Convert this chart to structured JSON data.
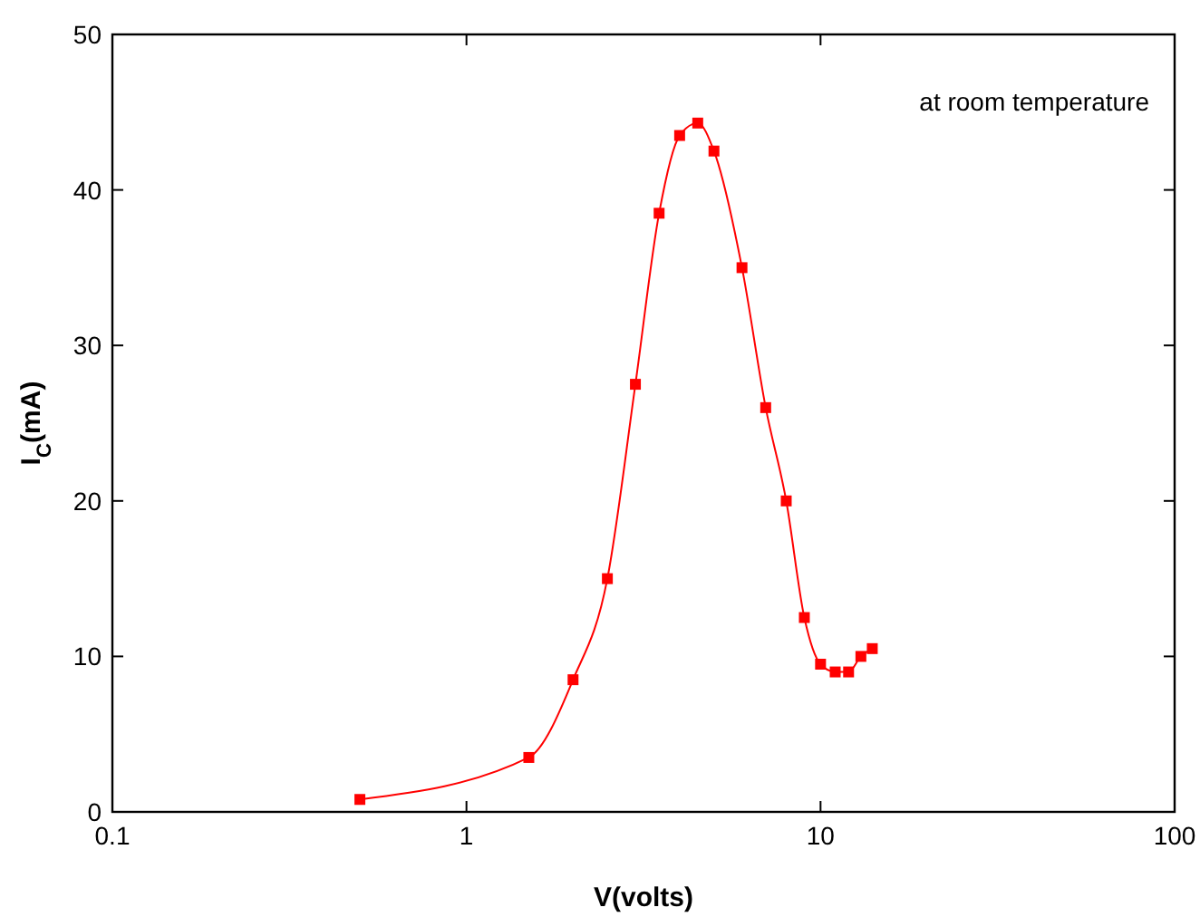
{
  "chart_data": {
    "type": "line",
    "xlabel": "V(volts)",
    "ylabel": "I$_{C}$(mA)",
    "log": "x",
    "marker": "square",
    "grid": false,
    "xlim": [
      0.1,
      100
    ],
    "xticks": [
      0.1,
      1,
      10,
      100
    ],
    "ylim": [
      0,
      50
    ],
    "yticks": [
      0,
      10,
      20,
      30,
      40,
      50
    ],
    "annotations": [
      "at room temperature"
    ],
    "series": [
      {
        "color": "#ff0000",
        "x": [
          0.5,
          1.5,
          2,
          2.5,
          3,
          3.5,
          4,
          4.5,
          5,
          6,
          7,
          8,
          9,
          10,
          11,
          12,
          13,
          14
        ],
        "values": [
          0.8,
          3.5,
          8.5,
          15,
          27.5,
          38.5,
          43.5,
          44.3,
          42.5,
          35,
          26,
          20,
          12.5,
          9.5,
          9,
          9,
          10,
          10.5
        ]
      }
    ]
  }
}
